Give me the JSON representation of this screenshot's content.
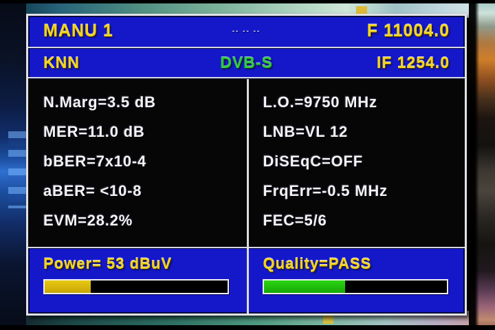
{
  "header": {
    "mode": "MANU 1",
    "status_dashes": "-- -- --",
    "frequency": "F 11004.0"
  },
  "subheader": {
    "channel_name": "KNN",
    "standard": "DVB-S",
    "if_frequency": "IF 1254.0"
  },
  "measurements": {
    "left": [
      "N.Marg=3.5 dB",
      "MER=11.0 dB",
      "bBER=7x10-4",
      "aBER= <10-8",
      "EVM=28.2%"
    ],
    "right": [
      "L.O.=9750 MHz",
      "LNB=VL 12",
      "DiSEqC=OFF",
      "FrqErr=-0.5 MHz",
      "FEC=5/6"
    ]
  },
  "power": {
    "label": "Power= 53 dBuV",
    "fill_percent": 25,
    "fill_color": "#e8c912"
  },
  "quality": {
    "label": "Quality=PASS",
    "fill_percent": 44,
    "fill_color": "#2bd512"
  },
  "colors": {
    "panel_blue": "#1518c9",
    "panel_black": "#060606",
    "accent_yellow": "#f2d418",
    "accent_green": "#2ec83e",
    "text_white": "#f4f4f4",
    "bar_border_white": "#eeeef2"
  }
}
